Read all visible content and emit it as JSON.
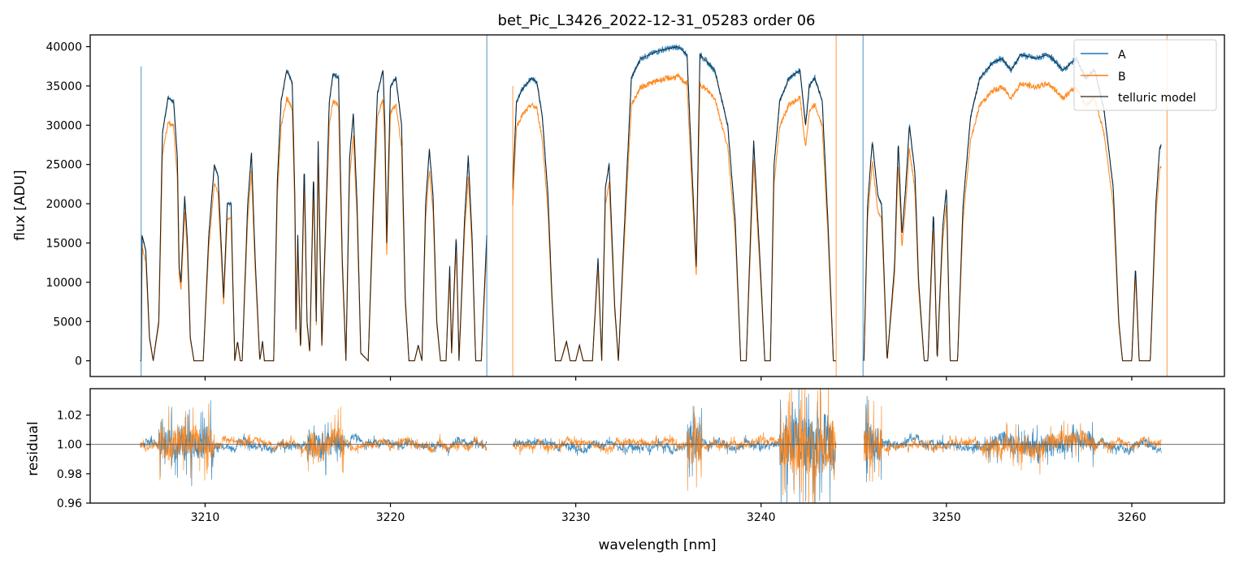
{
  "figure": {
    "title": "bet_Pic_L3426_2022-12-31_05283  order 06"
  },
  "chart_data": [
    {
      "panel": "flux",
      "type": "line",
      "ylabel": "flux [ADU]",
      "xlim": [
        3203.8,
        3265.0
      ],
      "ylim": [
        -2000,
        41500
      ],
      "yticks": [
        0,
        5000,
        10000,
        15000,
        20000,
        25000,
        30000,
        35000,
        40000
      ],
      "xticks": [
        3210,
        3220,
        3230,
        3240,
        3250,
        3260
      ],
      "show_xtick_labels": false,
      "legend_position": "top-right",
      "legend": [
        "A",
        "B",
        "telluric model"
      ],
      "colors": {
        "A": "#1f77b4",
        "B": "#ff7f0e",
        "telluric model": "#000000"
      },
      "model_profile": [
        [
          3206.55,
          0
        ],
        [
          3206.6,
          16000
        ],
        [
          3206.8,
          14000
        ],
        [
          3207.0,
          3000
        ],
        [
          3207.2,
          0
        ],
        [
          3207.5,
          5000
        ],
        [
          3207.7,
          29000
        ],
        [
          3208.0,
          33500
        ],
        [
          3208.3,
          33000
        ],
        [
          3208.5,
          26000
        ],
        [
          3208.6,
          12000
        ],
        [
          3208.7,
          10000
        ],
        [
          3208.9,
          21000
        ],
        [
          3209.05,
          15000
        ],
        [
          3209.2,
          3000
        ],
        [
          3209.4,
          0
        ],
        [
          3209.9,
          0
        ],
        [
          3210.2,
          16000
        ],
        [
          3210.5,
          25000
        ],
        [
          3210.7,
          23500
        ],
        [
          3211.0,
          8000
        ],
        [
          3211.2,
          20000
        ],
        [
          3211.4,
          20000
        ],
        [
          3211.6,
          0
        ],
        [
          3211.75,
          2500
        ],
        [
          3211.9,
          0
        ],
        [
          3212.0,
          0
        ],
        [
          3212.3,
          20000
        ],
        [
          3212.5,
          26500
        ],
        [
          3212.7,
          13000
        ],
        [
          3212.95,
          0
        ],
        [
          3213.1,
          2500
        ],
        [
          3213.2,
          0
        ],
        [
          3213.7,
          0
        ],
        [
          3213.9,
          23000
        ],
        [
          3214.1,
          33000
        ],
        [
          3214.4,
          37000
        ],
        [
          3214.7,
          35500
        ],
        [
          3214.85,
          20000
        ],
        [
          3214.9,
          4000
        ],
        [
          3215.0,
          16000
        ],
        [
          3215.15,
          1000
        ],
        [
          3215.35,
          25000
        ],
        [
          3215.5,
          5000
        ],
        [
          3215.65,
          1000
        ],
        [
          3215.85,
          24000
        ],
        [
          3216.0,
          5000
        ],
        [
          3216.1,
          28000
        ],
        [
          3216.3,
          2000
        ],
        [
          3216.5,
          17000
        ],
        [
          3216.7,
          33000
        ],
        [
          3216.9,
          36500
        ],
        [
          3217.2,
          36000
        ],
        [
          3217.4,
          13000
        ],
        [
          3217.6,
          0
        ],
        [
          3217.8,
          26000
        ],
        [
          3218.0,
          31500
        ],
        [
          3218.2,
          20000
        ],
        [
          3218.4,
          1000
        ],
        [
          3218.8,
          0
        ],
        [
          3219.1,
          22000
        ],
        [
          3219.3,
          34000
        ],
        [
          3219.6,
          37000
        ],
        [
          3219.7,
          30000
        ],
        [
          3219.8,
          15000
        ],
        [
          3220.0,
          35000
        ],
        [
          3220.3,
          36000
        ],
        [
          3220.6,
          30000
        ],
        [
          3220.8,
          8000
        ],
        [
          3221.0,
          0
        ],
        [
          3221.3,
          0
        ],
        [
          3221.5,
          2000
        ],
        [
          3221.7,
          0
        ],
        [
          3221.9,
          20000
        ],
        [
          3222.1,
          27000
        ],
        [
          3222.3,
          21000
        ],
        [
          3222.5,
          5000
        ],
        [
          3222.7,
          0
        ],
        [
          3223.0,
          0
        ],
        [
          3223.2,
          12000
        ],
        [
          3223.3,
          1000
        ],
        [
          3223.55,
          16000
        ],
        [
          3223.7,
          0
        ],
        [
          3224.0,
          18000
        ],
        [
          3224.2,
          26000
        ],
        [
          3224.4,
          16000
        ],
        [
          3224.6,
          0
        ],
        [
          3224.9,
          0
        ],
        [
          3225.2,
          16000
        ],
        [
          3226.6,
          22000
        ],
        [
          3226.8,
          33000
        ],
        [
          3227.1,
          34500
        ],
        [
          3227.6,
          36000
        ],
        [
          3227.9,
          35500
        ],
        [
          3228.2,
          31000
        ],
        [
          3228.5,
          21000
        ],
        [
          3228.7,
          9000
        ],
        [
          3228.9,
          0
        ],
        [
          3229.2,
          0
        ],
        [
          3229.5,
          2500
        ],
        [
          3229.7,
          0
        ],
        [
          3230.0,
          0
        ],
        [
          3230.2,
          2000
        ],
        [
          3230.4,
          0
        ],
        [
          3230.9,
          0
        ],
        [
          3231.2,
          13000
        ],
        [
          3231.4,
          0
        ],
        [
          3231.6,
          22000
        ],
        [
          3231.8,
          25000
        ],
        [
          3232.1,
          7000
        ],
        [
          3232.3,
          0
        ],
        [
          3232.7,
          21000
        ],
        [
          3233.0,
          36000
        ],
        [
          3233.5,
          38500
        ],
        [
          3234.5,
          39500
        ],
        [
          3235.5,
          40000
        ],
        [
          3236.0,
          39000
        ],
        [
          3236.5,
          12000
        ],
        [
          3236.7,
          39000
        ],
        [
          3237.5,
          37000
        ],
        [
          3238.2,
          30000
        ],
        [
          3238.6,
          18000
        ],
        [
          3238.9,
          0
        ],
        [
          3239.2,
          0
        ],
        [
          3239.6,
          28000
        ],
        [
          3240.0,
          10000
        ],
        [
          3240.2,
          0
        ],
        [
          3240.5,
          0
        ],
        [
          3240.7,
          25000
        ],
        [
          3241.0,
          33000
        ],
        [
          3241.5,
          36000
        ],
        [
          3242.1,
          37000
        ],
        [
          3242.4,
          30000
        ],
        [
          3242.6,
          35000
        ],
        [
          3242.9,
          36000
        ],
        [
          3243.3,
          33000
        ],
        [
          3243.6,
          18000
        ],
        [
          3243.9,
          0
        ],
        [
          3244.05,
          0
        ],
        [
          3245.55,
          0
        ],
        [
          3245.75,
          20000
        ],
        [
          3246.0,
          28000
        ],
        [
          3246.3,
          21000
        ],
        [
          3246.5,
          20000
        ],
        [
          3246.8,
          0
        ],
        [
          3247.2,
          12000
        ],
        [
          3247.4,
          28000
        ],
        [
          3247.6,
          16000
        ],
        [
          3247.8,
          22000
        ],
        [
          3248.0,
          30000
        ],
        [
          3248.3,
          24000
        ],
        [
          3248.5,
          10000
        ],
        [
          3248.8,
          0
        ],
        [
          3249.0,
          0
        ],
        [
          3249.3,
          19000
        ],
        [
          3249.5,
          0
        ],
        [
          3249.8,
          17000
        ],
        [
          3250.0,
          22000
        ],
        [
          3250.2,
          0
        ],
        [
          3250.6,
          0
        ],
        [
          3250.9,
          20000
        ],
        [
          3251.3,
          31000
        ],
        [
          3251.8,
          36000
        ],
        [
          3252.5,
          38000
        ],
        [
          3253.0,
          38500
        ],
        [
          3253.5,
          37000
        ],
        [
          3254.0,
          39000
        ],
        [
          3254.8,
          38500
        ],
        [
          3255.5,
          39000
        ],
        [
          3256.3,
          37000
        ],
        [
          3257.0,
          38500
        ],
        [
          3257.5,
          36000
        ],
        [
          3258.0,
          37000
        ],
        [
          3258.5,
          32000
        ],
        [
          3259.0,
          22000
        ],
        [
          3259.3,
          5000
        ],
        [
          3259.5,
          0
        ],
        [
          3260.0,
          0
        ],
        [
          3260.2,
          12000
        ],
        [
          3260.4,
          0
        ],
        [
          3261.0,
          0
        ],
        [
          3261.3,
          20000
        ],
        [
          3261.5,
          27000
        ],
        [
          3261.6,
          27500
        ]
      ],
      "series": [
        {
          "name": "A",
          "scale": 1.0,
          "segments": [
            [
              3206.5,
              3225.2
            ],
            [
              3226.6,
              3244.05
            ],
            [
              3245.55,
              3261.6
            ]
          ]
        },
        {
          "name": "B",
          "scale": 0.905,
          "segments": [
            [
              3206.5,
              3225.2
            ],
            [
              3226.6,
              3244.05
            ],
            [
              3245.55,
              3261.6
            ]
          ]
        },
        {
          "name": "telluric model",
          "scale": 1.0,
          "segments": [
            [
              3206.5,
              3225.2
            ],
            [
              3226.6,
              3244.05
            ],
            [
              3245.55,
              3261.6
            ]
          ]
        }
      ]
    },
    {
      "panel": "residual",
      "type": "line",
      "xlabel": "wavelength [nm]",
      "ylabel": "residual",
      "xlim": [
        3203.8,
        3265.0
      ],
      "ylim": [
        0.96,
        1.038
      ],
      "yticks": [
        0.96,
        0.98,
        1.0,
        1.02
      ],
      "ytick_labels": [
        "0.96",
        "0.98",
        "1.00",
        "1.02"
      ],
      "xticks": [
        3210,
        3220,
        3230,
        3240,
        3250,
        3260
      ],
      "xtick_labels": [
        "3210",
        "3220",
        "3230",
        "3240",
        "3250",
        "3260"
      ],
      "reference_line": 1.0,
      "series": [
        {
          "name": "A",
          "color": "#1f77b4",
          "segments": [
            [
              3206.5,
              3225.2
            ],
            [
              3226.6,
              3244.05
            ],
            [
              3245.55,
              3261.6
            ]
          ]
        },
        {
          "name": "B",
          "color": "#ff7f0e",
          "segments": [
            [
              3206.5,
              3225.2
            ],
            [
              3226.6,
              3244.05
            ],
            [
              3245.55,
              3261.6
            ]
          ]
        }
      ],
      "noisy_regions": [
        [
          3207.5,
          3210.5,
          0.035
        ],
        [
          3215.5,
          3217.5,
          0.03
        ],
        [
          3236.0,
          3236.8,
          0.05
        ],
        [
          3241.0,
          3244.0,
          0.06
        ],
        [
          3245.5,
          3246.5,
          0.04
        ],
        [
          3252.0,
          3258.0,
          0.02
        ]
      ]
    }
  ]
}
